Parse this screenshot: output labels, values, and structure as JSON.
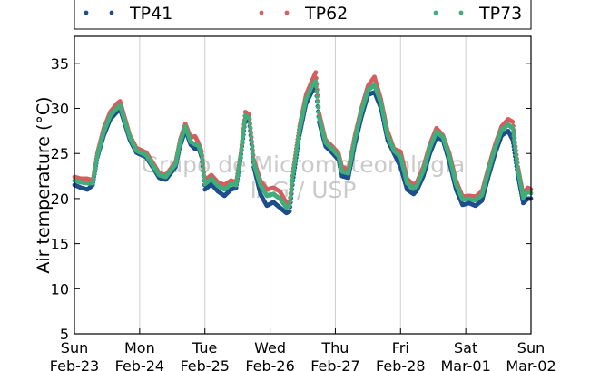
{
  "chart_data": {
    "type": "scatter",
    "title": "",
    "ylabel": "Air temperature (°C)",
    "xlabel": "",
    "ylim": [
      5,
      38
    ],
    "xlim_days": [
      "2016-02-23T00:00",
      "2016-03-02T00:00"
    ],
    "yticks": [
      5,
      10,
      15,
      20,
      25,
      30,
      35
    ],
    "xticks": [
      {
        "day": "Sun",
        "date": "Feb-23"
      },
      {
        "day": "Mon",
        "date": "Feb-24"
      },
      {
        "day": "Tue",
        "date": "Feb-25"
      },
      {
        "day": "Wed",
        "date": "Feb-26"
      },
      {
        "day": "Thu",
        "date": "Feb-27"
      },
      {
        "day": "Fri",
        "date": "Feb-28"
      },
      {
        "day": "Sat",
        "date": "Mar-01"
      },
      {
        "day": "Sun",
        "date": "Mar-02"
      }
    ],
    "grid": "vertical",
    "legend_position": "top",
    "watermark": [
      "Grupo de Micrometeorologia",
      "IAG / USP"
    ],
    "x_unit": "days since Feb-23 00:00",
    "series": [
      {
        "name": "TP41",
        "color": "#1f4e8c",
        "points": [
          [
            0.0,
            21.5
          ],
          [
            0.1,
            21.2
          ],
          [
            0.2,
            21.0
          ],
          [
            0.28,
            21.5
          ],
          [
            0.35,
            24.5
          ],
          [
            0.45,
            27.0
          ],
          [
            0.55,
            28.8
          ],
          [
            0.65,
            29.6
          ],
          [
            0.7,
            29.9
          ],
          [
            0.75,
            28.8
          ],
          [
            0.85,
            26.5
          ],
          [
            0.95,
            25.1
          ],
          [
            1.1,
            24.6
          ],
          [
            1.2,
            23.5
          ],
          [
            1.3,
            22.3
          ],
          [
            1.4,
            22.1
          ],
          [
            1.55,
            23.5
          ],
          [
            1.62,
            25.8
          ],
          [
            1.7,
            27.6
          ],
          [
            1.78,
            26.0
          ],
          [
            1.85,
            25.5
          ],
          [
            1.9,
            25.7
          ],
          [
            1.95,
            24.6
          ],
          [
            2.0,
            21.0
          ],
          [
            2.1,
            21.6
          ],
          [
            2.2,
            20.8
          ],
          [
            2.3,
            20.3
          ],
          [
            2.4,
            21.0
          ],
          [
            2.48,
            21.2
          ],
          [
            2.55,
            24.5
          ],
          [
            2.62,
            28.8
          ],
          [
            2.68,
            28.5
          ],
          [
            2.75,
            23.5
          ],
          [
            2.85,
            20.5
          ],
          [
            2.95,
            19.2
          ],
          [
            3.05,
            19.6
          ],
          [
            3.15,
            19.0
          ],
          [
            3.25,
            18.4
          ],
          [
            3.3,
            18.6
          ],
          [
            3.35,
            22.0
          ],
          [
            3.45,
            27.0
          ],
          [
            3.55,
            30.5
          ],
          [
            3.65,
            32.0
          ],
          [
            3.7,
            32.5
          ],
          [
            3.75,
            28.5
          ],
          [
            3.85,
            25.8
          ],
          [
            3.95,
            25.1
          ],
          [
            4.05,
            24.3
          ],
          [
            4.1,
            22.5
          ],
          [
            4.2,
            22.3
          ],
          [
            4.3,
            26.0
          ],
          [
            4.4,
            29.0
          ],
          [
            4.5,
            31.5
          ],
          [
            4.6,
            31.8
          ],
          [
            4.7,
            30.0
          ],
          [
            4.8,
            26.5
          ],
          [
            4.9,
            25.0
          ],
          [
            5.0,
            23.5
          ],
          [
            5.1,
            21.0
          ],
          [
            5.2,
            20.5
          ],
          [
            5.25,
            20.9
          ],
          [
            5.35,
            22.5
          ],
          [
            5.45,
            25.0
          ],
          [
            5.55,
            26.8
          ],
          [
            5.65,
            26.5
          ],
          [
            5.75,
            24.0
          ],
          [
            5.85,
            21.0
          ],
          [
            5.95,
            19.3
          ],
          [
            6.05,
            19.5
          ],
          [
            6.15,
            19.2
          ],
          [
            6.25,
            19.8
          ],
          [
            6.35,
            22.5
          ],
          [
            6.45,
            25.0
          ],
          [
            6.55,
            27.0
          ],
          [
            6.65,
            27.5
          ],
          [
            6.72,
            26.5
          ],
          [
            6.8,
            22.5
          ],
          [
            6.88,
            19.5
          ],
          [
            6.95,
            20.0
          ],
          [
            7.0,
            20.0
          ]
        ]
      },
      {
        "name": "TP62",
        "color": "#d45f5f",
        "points": [
          [
            0.0,
            22.4
          ],
          [
            0.1,
            22.2
          ],
          [
            0.2,
            22.2
          ],
          [
            0.28,
            22.0
          ],
          [
            0.35,
            25.0
          ],
          [
            0.45,
            27.8
          ],
          [
            0.55,
            29.6
          ],
          [
            0.65,
            30.5
          ],
          [
            0.7,
            30.8
          ],
          [
            0.75,
            29.5
          ],
          [
            0.85,
            27.0
          ],
          [
            0.95,
            25.6
          ],
          [
            1.1,
            25.1
          ],
          [
            1.2,
            24.0
          ],
          [
            1.3,
            22.8
          ],
          [
            1.4,
            22.6
          ],
          [
            1.55,
            24.0
          ],
          [
            1.62,
            26.5
          ],
          [
            1.7,
            28.3
          ],
          [
            1.78,
            26.8
          ],
          [
            1.85,
            26.9
          ],
          [
            1.9,
            26.2
          ],
          [
            1.95,
            25.2
          ],
          [
            2.0,
            22.0
          ],
          [
            2.1,
            22.6
          ],
          [
            2.2,
            21.8
          ],
          [
            2.3,
            21.5
          ],
          [
            2.4,
            22.0
          ],
          [
            2.48,
            21.8
          ],
          [
            2.55,
            25.0
          ],
          [
            2.62,
            29.6
          ],
          [
            2.68,
            29.3
          ],
          [
            2.75,
            24.3
          ],
          [
            2.85,
            22.0
          ],
          [
            2.95,
            21.0
          ],
          [
            3.05,
            21.2
          ],
          [
            3.15,
            20.8
          ],
          [
            3.25,
            19.5
          ],
          [
            3.3,
            19.6
          ],
          [
            3.35,
            23.0
          ],
          [
            3.45,
            28.0
          ],
          [
            3.55,
            31.5
          ],
          [
            3.65,
            33.2
          ],
          [
            3.7,
            34.0
          ],
          [
            3.75,
            29.5
          ],
          [
            3.85,
            26.5
          ],
          [
            3.95,
            25.8
          ],
          [
            4.05,
            25.0
          ],
          [
            4.1,
            23.5
          ],
          [
            4.2,
            23.2
          ],
          [
            4.3,
            27.0
          ],
          [
            4.4,
            30.0
          ],
          [
            4.5,
            32.5
          ],
          [
            4.6,
            33.5
          ],
          [
            4.7,
            31.0
          ],
          [
            4.8,
            27.5
          ],
          [
            4.9,
            25.5
          ],
          [
            5.0,
            25.2
          ],
          [
            5.1,
            22.2
          ],
          [
            5.2,
            21.5
          ],
          [
            5.25,
            21.8
          ],
          [
            5.35,
            23.5
          ],
          [
            5.45,
            26.0
          ],
          [
            5.55,
            27.8
          ],
          [
            5.65,
            27.0
          ],
          [
            5.75,
            25.0
          ],
          [
            5.85,
            22.0
          ],
          [
            5.95,
            20.2
          ],
          [
            6.05,
            20.3
          ],
          [
            6.15,
            20.2
          ],
          [
            6.25,
            20.8
          ],
          [
            6.35,
            23.5
          ],
          [
            6.45,
            26.0
          ],
          [
            6.55,
            28.0
          ],
          [
            6.65,
            28.8
          ],
          [
            6.72,
            28.5
          ],
          [
            6.8,
            23.5
          ],
          [
            6.88,
            20.5
          ],
          [
            6.95,
            21.2
          ],
          [
            7.0,
            21.0
          ]
        ]
      },
      {
        "name": "TP73",
        "color": "#3fae7a",
        "points": [
          [
            0.0,
            22.0
          ],
          [
            0.1,
            21.8
          ],
          [
            0.2,
            21.7
          ],
          [
            0.28,
            21.7
          ],
          [
            0.35,
            24.7
          ],
          [
            0.45,
            27.4
          ],
          [
            0.55,
            29.2
          ],
          [
            0.65,
            30.0
          ],
          [
            0.7,
            30.3
          ],
          [
            0.75,
            29.1
          ],
          [
            0.85,
            26.8
          ],
          [
            0.95,
            25.3
          ],
          [
            1.1,
            24.8
          ],
          [
            1.2,
            23.7
          ],
          [
            1.3,
            22.6
          ],
          [
            1.4,
            22.4
          ],
          [
            1.55,
            23.8
          ],
          [
            1.62,
            26.2
          ],
          [
            1.7,
            28.0
          ],
          [
            1.78,
            26.3
          ],
          [
            1.85,
            26.0
          ],
          [
            1.9,
            25.9
          ],
          [
            1.95,
            24.9
          ],
          [
            2.0,
            21.6
          ],
          [
            2.1,
            22.2
          ],
          [
            2.2,
            21.4
          ],
          [
            2.3,
            21.0
          ],
          [
            2.4,
            21.6
          ],
          [
            2.48,
            21.5
          ],
          [
            2.55,
            24.8
          ],
          [
            2.62,
            29.2
          ],
          [
            2.68,
            28.9
          ],
          [
            2.75,
            23.9
          ],
          [
            2.85,
            21.5
          ],
          [
            2.95,
            20.3
          ],
          [
            3.05,
            20.5
          ],
          [
            3.15,
            20.0
          ],
          [
            3.25,
            19.0
          ],
          [
            3.3,
            19.2
          ],
          [
            3.35,
            22.6
          ],
          [
            3.45,
            27.6
          ],
          [
            3.55,
            31.0
          ],
          [
            3.65,
            32.6
          ],
          [
            3.7,
            33.0
          ],
          [
            3.75,
            29.0
          ],
          [
            3.85,
            26.2
          ],
          [
            3.95,
            25.5
          ],
          [
            4.05,
            24.7
          ],
          [
            4.1,
            23.0
          ],
          [
            4.2,
            22.8
          ],
          [
            4.3,
            26.6
          ],
          [
            4.4,
            29.6
          ],
          [
            4.5,
            32.0
          ],
          [
            4.6,
            32.6
          ],
          [
            4.7,
            30.6
          ],
          [
            4.8,
            27.0
          ],
          [
            4.9,
            25.3
          ],
          [
            5.0,
            24.6
          ],
          [
            5.1,
            21.7
          ],
          [
            5.2,
            21.1
          ],
          [
            5.25,
            21.4
          ],
          [
            5.35,
            23.1
          ],
          [
            5.45,
            25.6
          ],
          [
            5.55,
            27.4
          ],
          [
            5.65,
            26.8
          ],
          [
            5.75,
            24.6
          ],
          [
            5.85,
            21.6
          ],
          [
            5.95,
            19.9
          ],
          [
            6.05,
            20.0
          ],
          [
            6.15,
            19.8
          ],
          [
            6.25,
            20.4
          ],
          [
            6.35,
            23.1
          ],
          [
            6.45,
            25.6
          ],
          [
            6.55,
            27.6
          ],
          [
            6.65,
            28.2
          ],
          [
            6.72,
            27.8
          ],
          [
            6.8,
            23.1
          ],
          [
            6.88,
            20.1
          ],
          [
            6.95,
            20.8
          ],
          [
            7.0,
            20.6
          ]
        ]
      }
    ]
  }
}
